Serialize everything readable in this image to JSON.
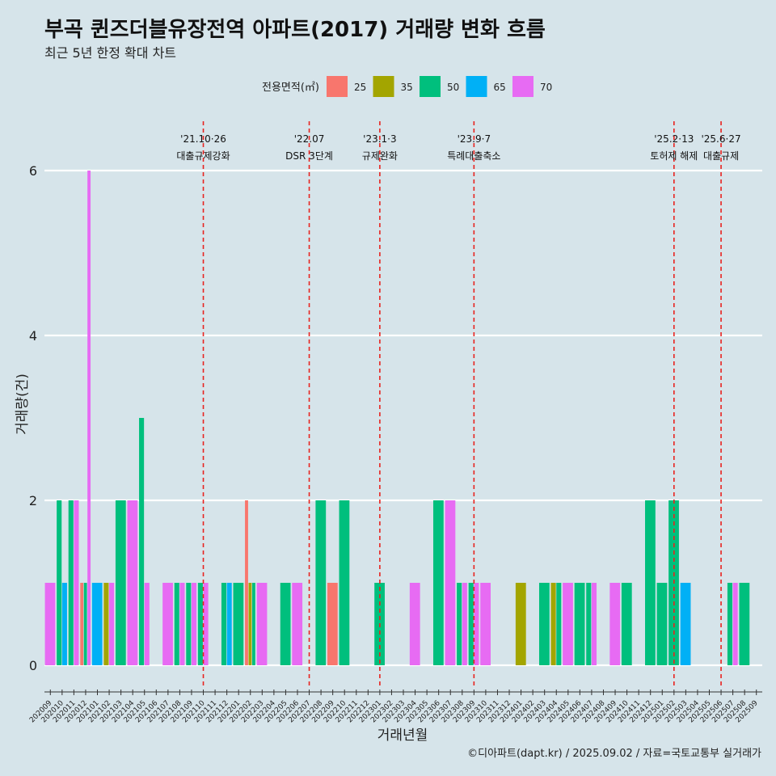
{
  "title": "부곡 퀸즈더블유장전역 아파트(2017) 거래량 변화 흐름",
  "subtitle": "최근 5년 한정 확대 차트",
  "caption": "©디아파트(dapt.kr) / 2025.09.02 / 자료=국토교통부 실거래가",
  "chart_data": {
    "type": "bar",
    "xlabel": "거래년월",
    "ylabel": "거래량(건)",
    "ylim": [
      0,
      6.3
    ],
    "yticks": [
      0,
      2,
      4,
      6
    ],
    "grid": true,
    "legend": {
      "title": "전용면적(㎡)",
      "placement": "top"
    },
    "categories": [
      "202009",
      "202010",
      "202011",
      "202012",
      "202101",
      "202102",
      "202103",
      "202104",
      "202105",
      "202106",
      "202107",
      "202108",
      "202109",
      "202110",
      "202111",
      "202112",
      "202201",
      "202202",
      "202203",
      "202204",
      "202205",
      "202206",
      "202207",
      "202208",
      "202209",
      "202210",
      "202211",
      "202212",
      "202301",
      "202302",
      "202303",
      "202304",
      "202305",
      "202306",
      "202307",
      "202308",
      "202309",
      "202310",
      "202311",
      "202312",
      "202401",
      "202402",
      "202403",
      "202404",
      "202405",
      "202406",
      "202407",
      "202408",
      "202409",
      "202410",
      "202411",
      "202412",
      "202501",
      "202502",
      "202503",
      "202504",
      "202505",
      "202506",
      "202507",
      "202508",
      "202509"
    ],
    "series": [
      {
        "name": "25",
        "color": "#f8766d",
        "values": [
          0,
          0,
          0,
          1,
          0,
          0,
          0,
          0,
          0,
          0,
          0,
          0,
          0,
          0,
          0,
          0,
          0,
          2,
          0,
          0,
          0,
          0,
          0,
          0,
          1,
          0,
          0,
          0,
          0,
          0,
          0,
          0,
          0,
          0,
          0,
          0,
          0,
          0,
          0,
          0,
          0,
          0,
          0,
          0,
          0,
          0,
          0,
          0,
          0,
          0,
          0,
          0,
          0,
          0,
          0,
          0,
          0,
          0,
          0,
          0,
          0
        ]
      },
      {
        "name": "35",
        "color": "#a3a500",
        "values": [
          0,
          0,
          0,
          0,
          0,
          1,
          0,
          0,
          0,
          0,
          0,
          0,
          0,
          0,
          0,
          0,
          0,
          1,
          0,
          0,
          0,
          0,
          0,
          0,
          0,
          0,
          0,
          0,
          0,
          0,
          0,
          0,
          0,
          0,
          0,
          0,
          0,
          0,
          0,
          0,
          1,
          0,
          0,
          1,
          0,
          0,
          0,
          0,
          0,
          0,
          0,
          0,
          0,
          0,
          0,
          0,
          0,
          0,
          0,
          0,
          0
        ]
      },
      {
        "name": "50",
        "color": "#00bf7d",
        "values": [
          0,
          2,
          2,
          1,
          0,
          0,
          2,
          0,
          3,
          0,
          0,
          1,
          1,
          1,
          0,
          1,
          1,
          1,
          0,
          0,
          1,
          0,
          0,
          2,
          0,
          2,
          0,
          0,
          1,
          0,
          0,
          0,
          0,
          2,
          0,
          1,
          1,
          0,
          0,
          0,
          0,
          0,
          1,
          1,
          0,
          1,
          1,
          0,
          0,
          1,
          0,
          2,
          1,
          2,
          0,
          0,
          0,
          0,
          1,
          1,
          0
        ]
      },
      {
        "name": "65",
        "color": "#00b0f6",
        "values": [
          0,
          1,
          0,
          0,
          1,
          0,
          0,
          0,
          0,
          0,
          0,
          0,
          0,
          0,
          0,
          1,
          0,
          0,
          0,
          0,
          0,
          0,
          0,
          0,
          0,
          0,
          0,
          0,
          0,
          0,
          0,
          0,
          0,
          0,
          0,
          0,
          0,
          0,
          0,
          0,
          0,
          0,
          0,
          0,
          0,
          0,
          0,
          0,
          0,
          0,
          0,
          0,
          0,
          0,
          1,
          0,
          0,
          0,
          0,
          0,
          0
        ]
      },
      {
        "name": "70",
        "color": "#e76bf3",
        "values": [
          1,
          0,
          2,
          6,
          0,
          1,
          0,
          2,
          1,
          0,
          1,
          1,
          1,
          1,
          0,
          0,
          0,
          0,
          1,
          0,
          0,
          1,
          0,
          0,
          0,
          0,
          0,
          0,
          0,
          0,
          0,
          1,
          0,
          0,
          2,
          1,
          1,
          1,
          0,
          0,
          0,
          0,
          0,
          0,
          1,
          0,
          1,
          0,
          1,
          0,
          0,
          0,
          0,
          0,
          0,
          0,
          0,
          0,
          1,
          0,
          0
        ]
      }
    ],
    "annotations": [
      {
        "x": "202110",
        "label1": "'21.10·26",
        "label2": "대출규제강화"
      },
      {
        "x": "202207",
        "label1": "'22.07",
        "label2": "DSR 3단계"
      },
      {
        "x": "202301",
        "label1": "'23.1·3",
        "label2": "규제완화"
      },
      {
        "x": "202309",
        "label1": "'23.9·7",
        "label2": "특례대출축소"
      },
      {
        "x": "202502",
        "label1": "'25.2·13",
        "label2": "토허제 해제"
      },
      {
        "x": "202506",
        "label1": "'25.6·27",
        "label2": "대출규제"
      }
    ]
  }
}
